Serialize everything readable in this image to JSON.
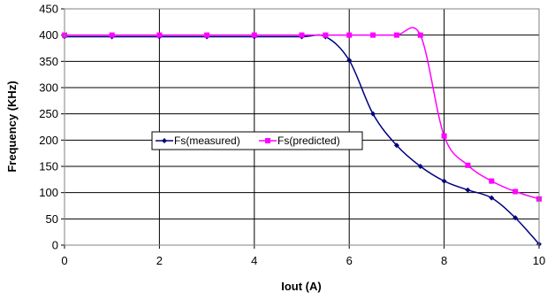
{
  "chart_data": {
    "type": "line",
    "title": "",
    "xlabel": "Iout (A)",
    "ylabel": "Frequency (KHz)",
    "xlim": [
      0,
      10
    ],
    "ylim": [
      0,
      450
    ],
    "xticks": [
      0,
      2,
      4,
      6,
      8,
      10
    ],
    "yticks": [
      0,
      50,
      100,
      150,
      200,
      250,
      300,
      350,
      400,
      450
    ],
    "grid": true,
    "legend_position": "center-left",
    "series": [
      {
        "name": "Fs(measured)",
        "color": "#000080",
        "marker": "diamond",
        "x": [
          0,
          1,
          2,
          3,
          4,
          5,
          5.5,
          6,
          6.5,
          7,
          7.5,
          8,
          8.5,
          9,
          9.5,
          10
        ],
        "y": [
          397,
          397,
          397,
          397,
          397,
          397,
          397,
          352,
          250,
          190,
          150,
          122,
          105,
          90,
          52,
          2
        ]
      },
      {
        "name": "Fs(predicted)",
        "color": "#FF00FF",
        "marker": "square",
        "x": [
          0,
          1,
          2,
          3,
          4,
          5,
          5.5,
          6,
          6.5,
          7,
          7.5,
          8,
          8.5,
          9,
          9.5,
          10
        ],
        "y": [
          400,
          400,
          400,
          400,
          400,
          400,
          400,
          400,
          400,
          400,
          400,
          208,
          152,
          122,
          102,
          88
        ]
      }
    ]
  }
}
